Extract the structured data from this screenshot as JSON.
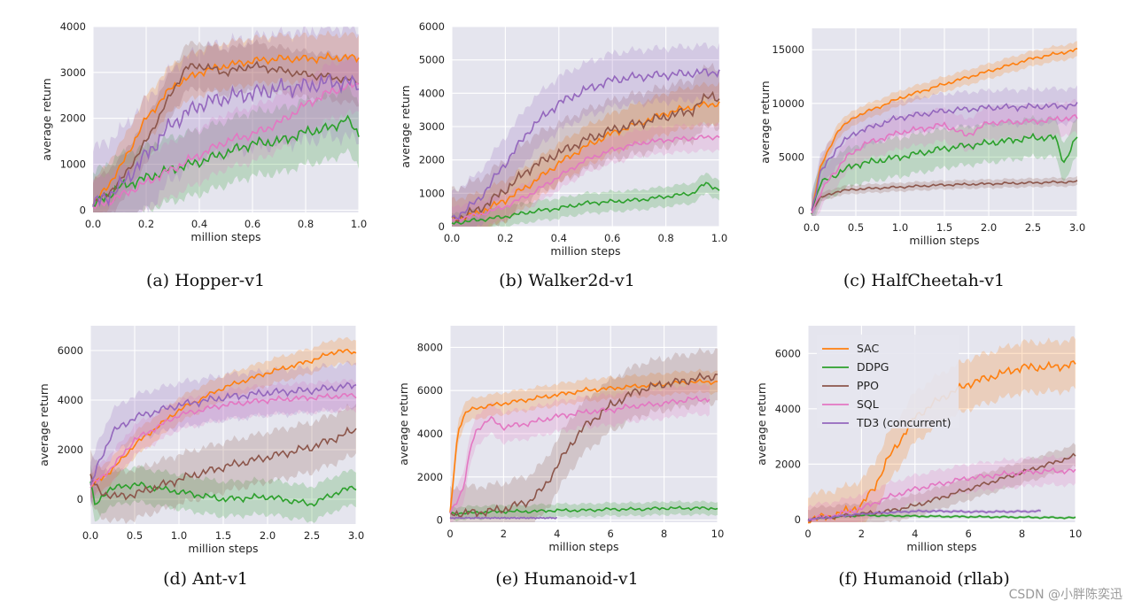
{
  "figure": {
    "colors": {
      "SAC": "#ff7f0e",
      "DDPG": "#2ca02c",
      "PPO": "#8c564b",
      "SQL": "#e377c2",
      "TD3 (concurrent)": "#9467bd"
    },
    "legend": [
      "SAC",
      "DDPG",
      "PPO",
      "SQL",
      "TD3 (concurrent)"
    ],
    "watermark": "CSDN @小胖陈奕迅"
  },
  "chart_data": [
    {
      "type": "line",
      "caption": "(a) Hopper-v1",
      "xlabel": "million steps",
      "ylabel": "average return",
      "xlim": [
        0,
        1.0
      ],
      "ylim": [
        -50,
        4000
      ],
      "xticks": [
        "0.0",
        "0.2",
        "0.4",
        "0.6",
        "0.8",
        "1.0"
      ],
      "yticks": [
        "0",
        "1000",
        "2000",
        "3000",
        "4000"
      ],
      "grid": true,
      "series": [
        {
          "name": "SAC",
          "x": [
            0,
            0.1,
            0.2,
            0.3,
            0.4,
            0.5,
            0.6,
            0.7,
            0.8,
            0.9,
            1.0
          ],
          "y": [
            100,
            900,
            2000,
            2700,
            3000,
            3150,
            3250,
            3300,
            3300,
            3320,
            3320
          ],
          "band": 500
        },
        {
          "name": "DDPG",
          "x": [
            0,
            0.1,
            0.2,
            0.3,
            0.4,
            0.5,
            0.6,
            0.7,
            0.8,
            0.9,
            0.95,
            1.0
          ],
          "y": [
            100,
            500,
            700,
            900,
            1050,
            1250,
            1450,
            1500,
            1700,
            1800,
            2000,
            1650
          ],
          "band": 700
        },
        {
          "name": "PPO",
          "x": [
            0,
            0.1,
            0.2,
            0.3,
            0.35,
            0.4,
            0.5,
            0.6,
            0.7,
            0.8,
            0.9,
            1.0
          ],
          "y": [
            100,
            600,
            1500,
            2600,
            3100,
            3150,
            3000,
            3150,
            3050,
            2950,
            2900,
            2800
          ],
          "band": 500
        },
        {
          "name": "SQL",
          "x": [
            0,
            0.1,
            0.2,
            0.3,
            0.4,
            0.5,
            0.6,
            0.7,
            0.8,
            0.9,
            1.0
          ],
          "y": [
            50,
            300,
            600,
            900,
            1200,
            1500,
            1650,
            1900,
            2300,
            2600,
            2750
          ],
          "band": 600
        },
        {
          "name": "TD3 (concurrent)",
          "x": [
            0,
            0.1,
            0.2,
            0.3,
            0.4,
            0.5,
            0.6,
            0.7,
            0.8,
            0.9,
            1.0
          ],
          "y": [
            100,
            500,
            1200,
            1900,
            2300,
            2450,
            2550,
            2650,
            2700,
            2800,
            2750
          ],
          "band": 1200
        }
      ]
    },
    {
      "type": "line",
      "caption": "(b) Walker2d-v1",
      "xlabel": "million steps",
      "ylabel": "average return",
      "xlim": [
        0,
        1.0
      ],
      "ylim": [
        0,
        6000
      ],
      "xticks": [
        "0.0",
        "0.2",
        "0.4",
        "0.6",
        "0.8",
        "1.0"
      ],
      "yticks": [
        "0",
        "1000",
        "2000",
        "3000",
        "4000",
        "5000",
        "6000"
      ],
      "grid": true,
      "series": [
        {
          "name": "SAC",
          "x": [
            0,
            0.1,
            0.2,
            0.3,
            0.4,
            0.5,
            0.6,
            0.7,
            0.8,
            0.9,
            1.0
          ],
          "y": [
            200,
            400,
            800,
            1300,
            1900,
            2400,
            2800,
            3100,
            3400,
            3600,
            3700
          ],
          "band": 600
        },
        {
          "name": "DDPG",
          "x": [
            0,
            0.1,
            0.2,
            0.3,
            0.4,
            0.5,
            0.6,
            0.7,
            0.8,
            0.9,
            0.95,
            1.0
          ],
          "y": [
            100,
            200,
            300,
            450,
            550,
            700,
            750,
            800,
            900,
            1000,
            1300,
            1100
          ],
          "band": 300
        },
        {
          "name": "PPO",
          "x": [
            0,
            0.1,
            0.2,
            0.3,
            0.4,
            0.5,
            0.6,
            0.7,
            0.8,
            0.9,
            0.97,
            1.0
          ],
          "y": [
            200,
            500,
            1100,
            1800,
            2200,
            2600,
            2900,
            3100,
            3300,
            3500,
            4000,
            3800
          ],
          "band": 900
        },
        {
          "name": "SQL",
          "x": [
            0,
            0.1,
            0.2,
            0.3,
            0.4,
            0.5,
            0.6,
            0.7,
            0.8,
            0.9,
            1.0
          ],
          "y": [
            200,
            350,
            600,
            1000,
            1500,
            2000,
            2300,
            2500,
            2600,
            2650,
            2700
          ],
          "band": 400
        },
        {
          "name": "TD3 (concurrent)",
          "x": [
            0,
            0.1,
            0.2,
            0.3,
            0.4,
            0.5,
            0.6,
            0.7,
            0.8,
            0.9,
            1.0
          ],
          "y": [
            200,
            800,
            1900,
            3000,
            3700,
            4100,
            4400,
            4500,
            4550,
            4600,
            4650
          ],
          "band": 800
        }
      ]
    },
    {
      "type": "line",
      "caption": "(c) HalfCheetah-v1",
      "xlabel": "million steps",
      "ylabel": "average return",
      "xlim": [
        0,
        3.0
      ],
      "ylim": [
        -500,
        17000
      ],
      "xticks": [
        "0.0",
        "0.5",
        "1.0",
        "1.5",
        "2.0",
        "2.5",
        "3.0"
      ],
      "yticks": [
        "0",
        "5000",
        "10000",
        "15000"
      ],
      "grid": true,
      "series": [
        {
          "name": "SAC",
          "x": [
            0,
            0.1,
            0.3,
            0.5,
            0.8,
            1.0,
            1.5,
            2.0,
            2.5,
            3.0
          ],
          "y": [
            0,
            4000,
            7500,
            8800,
            9800,
            10500,
            11800,
            13000,
            14200,
            15000
          ],
          "band": 700
        },
        {
          "name": "DDPG",
          "x": [
            0,
            0.1,
            0.3,
            0.5,
            1.0,
            1.5,
            2.0,
            2.5,
            2.75,
            2.85,
            3.0
          ],
          "y": [
            0,
            2500,
            3500,
            4300,
            5000,
            5800,
            6300,
            6800,
            6800,
            4500,
            6900
          ],
          "band": 1800
        },
        {
          "name": "PPO",
          "x": [
            0,
            0.1,
            0.3,
            0.5,
            1.0,
            1.5,
            2.0,
            2.5,
            3.0
          ],
          "y": [
            0,
            1200,
            1800,
            2000,
            2200,
            2400,
            2500,
            2600,
            2700
          ],
          "band": 400
        },
        {
          "name": "SQL",
          "x": [
            0,
            0.2,
            0.4,
            0.6,
            1.0,
            1.5,
            1.75,
            2.0,
            2.5,
            3.0
          ],
          "y": [
            0,
            3000,
            5000,
            6200,
            7300,
            8000,
            7000,
            8200,
            8300,
            8700
          ],
          "band": 1500
        },
        {
          "name": "TD3 (concurrent)",
          "x": [
            0,
            0.1,
            0.3,
            0.5,
            1.0,
            1.5,
            2.0,
            2.5,
            3.0
          ],
          "y": [
            0,
            3500,
            6000,
            7300,
            8700,
            9300,
            9600,
            9700,
            9800
          ],
          "band": 1600
        }
      ]
    },
    {
      "type": "line",
      "caption": "(d) Ant-v1",
      "xlabel": "million steps",
      "ylabel": "average return",
      "xlim": [
        0,
        3.0
      ],
      "ylim": [
        -1000,
        7000
      ],
      "xticks": [
        "0.0",
        "0.5",
        "1.0",
        "1.5",
        "2.0",
        "2.5",
        "3.0"
      ],
      "yticks": [
        "0",
        "2000",
        "4000",
        "6000"
      ],
      "grid": true,
      "series": [
        {
          "name": "SAC",
          "x": [
            0,
            0.25,
            0.5,
            1.0,
            1.5,
            2.0,
            2.5,
            2.8,
            3.0
          ],
          "y": [
            500,
            1200,
            2200,
            3600,
            4500,
            5100,
            5600,
            6000,
            5900
          ],
          "band": 500
        },
        {
          "name": "DDPG",
          "x": [
            0,
            0.05,
            0.2,
            0.5,
            1.0,
            1.5,
            2.0,
            2.5,
            2.8,
            3.0
          ],
          "y": [
            800,
            -300,
            400,
            600,
            300,
            0,
            100,
            -200,
            300,
            500
          ],
          "band": 700
        },
        {
          "name": "PPO",
          "x": [
            0,
            0.1,
            0.3,
            0.5,
            1.0,
            1.5,
            2.0,
            2.5,
            3.0
          ],
          "y": [
            900,
            300,
            100,
            200,
            800,
            1300,
            1700,
            2100,
            2800
          ],
          "band": 1000
        },
        {
          "name": "SQL",
          "x": [
            0,
            0.25,
            0.5,
            1.0,
            1.5,
            2.0,
            2.5,
            3.0
          ],
          "y": [
            500,
            1300,
            2400,
            3400,
            3800,
            4000,
            4100,
            4200
          ],
          "band": 600
        },
        {
          "name": "TD3 (concurrent)",
          "x": [
            0,
            0.1,
            0.25,
            0.5,
            1.0,
            1.5,
            2.0,
            2.5,
            3.0
          ],
          "y": [
            500,
            1500,
            2700,
            3300,
            3800,
            4100,
            4300,
            4400,
            4600
          ],
          "band": 900
        }
      ]
    },
    {
      "type": "line",
      "caption": "(e) Humanoid-v1",
      "xlabel": "million steps",
      "ylabel": "average return",
      "xlim": [
        0,
        10
      ],
      "ylim": [
        -100,
        9000
      ],
      "xticks": [
        "0",
        "2",
        "4",
        "6",
        "8",
        "10"
      ],
      "yticks": [
        "0",
        "2000",
        "4000",
        "6000",
        "8000"
      ],
      "grid": true,
      "series": [
        {
          "name": "SAC",
          "x": [
            0,
            0.3,
            0.6,
            1,
            2,
            3,
            4,
            5,
            6,
            7,
            8,
            9,
            10
          ],
          "y": [
            300,
            4200,
            5000,
            5200,
            5400,
            5600,
            5800,
            6000,
            6100,
            6200,
            6300,
            6400,
            6400
          ],
          "band": 500
        },
        {
          "name": "DDPG",
          "x": [
            0,
            1,
            2,
            3,
            4,
            5,
            6,
            7,
            8,
            9,
            10
          ],
          "y": [
            300,
            350,
            400,
            400,
            450,
            450,
            500,
            500,
            550,
            550,
            550
          ],
          "band": 300
        },
        {
          "name": "PPO",
          "x": [
            0,
            1,
            2,
            3,
            3.5,
            4,
            4.5,
            5,
            6,
            7,
            8,
            9,
            10
          ],
          "y": [
            300,
            350,
            500,
            900,
            1500,
            2500,
            3500,
            4300,
            5300,
            6000,
            6300,
            6500,
            6700
          ],
          "band": 1200
        },
        {
          "name": "SQL",
          "x": [
            0,
            0.5,
            0.8,
            1,
            1.5,
            2,
            3,
            4,
            5,
            6,
            7,
            8,
            9,
            9.7
          ],
          "y": [
            300,
            1500,
            3500,
            4200,
            4700,
            4300,
            4500,
            4800,
            5000,
            5100,
            5300,
            5400,
            5600,
            5600
          ],
          "band": 700
        },
        {
          "name": "TD3 (concurrent)",
          "x": [
            0,
            1,
            2,
            3,
            4
          ],
          "y": [
            100,
            100,
            100,
            100,
            100
          ],
          "band": 0
        }
      ]
    },
    {
      "type": "line",
      "caption": "(f) Humanoid (rllab)",
      "xlabel": "million steps",
      "ylabel": "average return",
      "xlim": [
        0,
        10
      ],
      "ylim": [
        -100,
        7000
      ],
      "xticks": [
        "0",
        "2",
        "4",
        "6",
        "8",
        "10"
      ],
      "yticks": [
        "0",
        "2000",
        "4000",
        "6000"
      ],
      "grid": true,
      "legend": "top-left",
      "series": [
        {
          "name": "SAC",
          "x": [
            0,
            1,
            2,
            2.5,
            3,
            4,
            5,
            6,
            7,
            8,
            9,
            10
          ],
          "y": [
            0,
            150,
            500,
            1200,
            2200,
            3700,
            4400,
            4900,
            5200,
            5500,
            5500,
            5600
          ],
          "band": 900
        },
        {
          "name": "DDPG",
          "x": [
            0,
            1,
            2,
            4,
            6,
            8,
            10
          ],
          "y": [
            0,
            100,
            150,
            120,
            100,
            80,
            60
          ],
          "band": 50
        },
        {
          "name": "PPO",
          "x": [
            0,
            1,
            2,
            3,
            4,
            5,
            6,
            7,
            8,
            9,
            10
          ],
          "y": [
            0,
            100,
            200,
            300,
            500,
            800,
            1100,
            1400,
            1700,
            2000,
            2300
          ],
          "band": 400
        },
        {
          "name": "SQL",
          "x": [
            0,
            1,
            2,
            3,
            4,
            5,
            6,
            7,
            8,
            9,
            10
          ],
          "y": [
            0,
            150,
            400,
            800,
            1100,
            1300,
            1500,
            1600,
            1700,
            1750,
            1750
          ],
          "band": 500
        },
        {
          "name": "TD3 (concurrent)",
          "x": [
            0,
            1,
            2,
            3,
            4,
            5,
            6,
            7,
            8,
            8.7
          ],
          "y": [
            0,
            100,
            200,
            250,
            300,
            300,
            280,
            280,
            290,
            300
          ],
          "band": 60
        }
      ]
    }
  ]
}
